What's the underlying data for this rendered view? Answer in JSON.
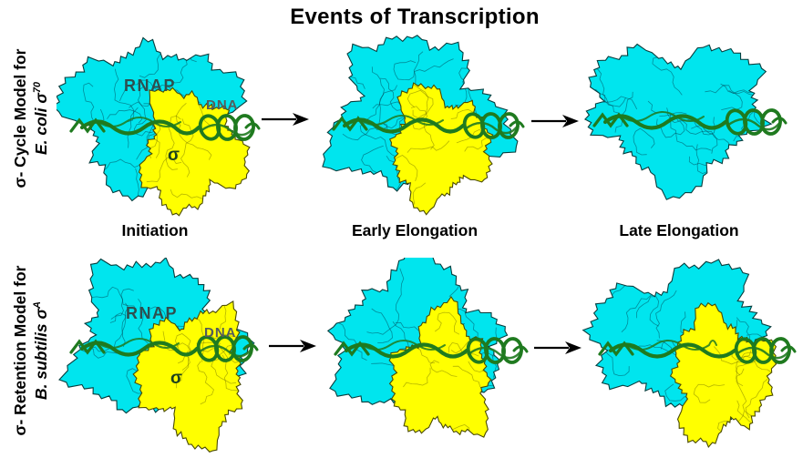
{
  "title": "Events of Transcription",
  "stages": {
    "initiation": "Initiation",
    "early": "Early Elongation",
    "late": "Late Elongation"
  },
  "models": {
    "cycle": {
      "prefix": "σ- Cycle Model for",
      "organism": "E. coli σ",
      "sup": "70"
    },
    "retention": {
      "prefix": "σ- Retention Model for",
      "organism": "B. subtilis σ",
      "sup": "A"
    }
  },
  "molecule_labels": {
    "rnap": "RNAP",
    "dna": "DNA",
    "sigma": "σ"
  },
  "colors": {
    "rnap_surface": "#00e5ee",
    "rnap_outline": "#073d3d",
    "sigma_surface": "#ffff00",
    "sigma_outline": "#4a4a00",
    "dna_ribbon": "#1f7a1f",
    "arrow": "#000000",
    "background": "#ffffff"
  }
}
